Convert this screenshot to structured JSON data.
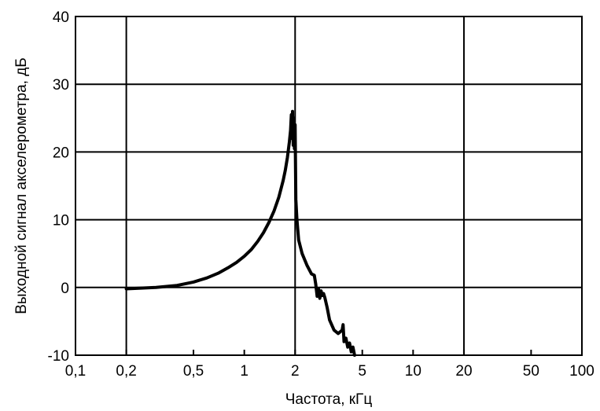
{
  "chart_data": {
    "type": "line",
    "title": "",
    "xlabel": "Частота, кГц",
    "ylabel": "Выходной сигнал акселерометра, дБ",
    "xscale": "log",
    "xlim": [
      0.1,
      100
    ],
    "ylim": [
      -10,
      40
    ],
    "grid": true,
    "x_ticks": [
      {
        "value": 0.1,
        "label": "0,1"
      },
      {
        "value": 0.2,
        "label": "0,2"
      },
      {
        "value": 0.5,
        "label": "0,5"
      },
      {
        "value": 1,
        "label": "1"
      },
      {
        "value": 2,
        "label": "2"
      },
      {
        "value": 5,
        "label": "5"
      },
      {
        "value": 10,
        "label": "10"
      },
      {
        "value": 20,
        "label": "20"
      },
      {
        "value": 50,
        "label": "50"
      },
      {
        "value": 100,
        "label": "100"
      }
    ],
    "y_ticks": [
      {
        "value": -10,
        "label": "-10"
      },
      {
        "value": 0,
        "label": "0"
      },
      {
        "value": 10,
        "label": "10"
      },
      {
        "value": 20,
        "label": "20"
      },
      {
        "value": 30,
        "label": "30"
      },
      {
        "value": 40,
        "label": "40"
      }
    ],
    "major_x_gridlines": [
      0.2,
      2,
      20
    ],
    "series": [
      {
        "x": [
          0.2,
          0.3,
          0.4,
          0.5,
          0.6,
          0.7,
          0.8,
          0.9,
          1.0,
          1.1,
          1.2,
          1.3,
          1.4,
          1.5,
          1.6,
          1.7,
          1.75,
          1.8,
          1.85,
          1.88,
          1.9,
          1.92,
          1.93,
          1.95,
          1.96,
          1.98,
          2.0,
          2.02,
          2.05,
          2.1,
          2.2,
          2.35,
          2.5,
          2.6,
          2.65,
          2.7,
          2.75,
          2.8,
          2.85,
          2.9,
          2.95,
          3.0,
          3.1,
          3.2,
          3.4,
          3.6,
          3.8,
          3.85,
          3.9,
          4.0,
          4.1,
          4.2,
          4.3,
          4.4,
          4.5
        ],
        "y": [
          -0.2,
          0.0,
          0.3,
          0.8,
          1.4,
          2.1,
          2.9,
          3.7,
          4.6,
          5.6,
          6.8,
          8.1,
          9.6,
          11.3,
          13.3,
          15.8,
          17.3,
          19.2,
          21.5,
          23.2,
          25.5,
          22.0,
          26.0,
          21.0,
          25.0,
          20.5,
          24.0,
          13.0,
          10.0,
          7.0,
          5.0,
          3.3,
          2.0,
          1.8,
          0.5,
          -1.3,
          -0.2,
          -1.6,
          -0.5,
          -1.2,
          -0.9,
          -1.5,
          -3.0,
          -4.8,
          -6.3,
          -6.8,
          -6.3,
          -5.5,
          -8.0,
          -7.5,
          -8.8,
          -8.2,
          -9.5,
          -8.8,
          -10.0
        ]
      }
    ]
  }
}
